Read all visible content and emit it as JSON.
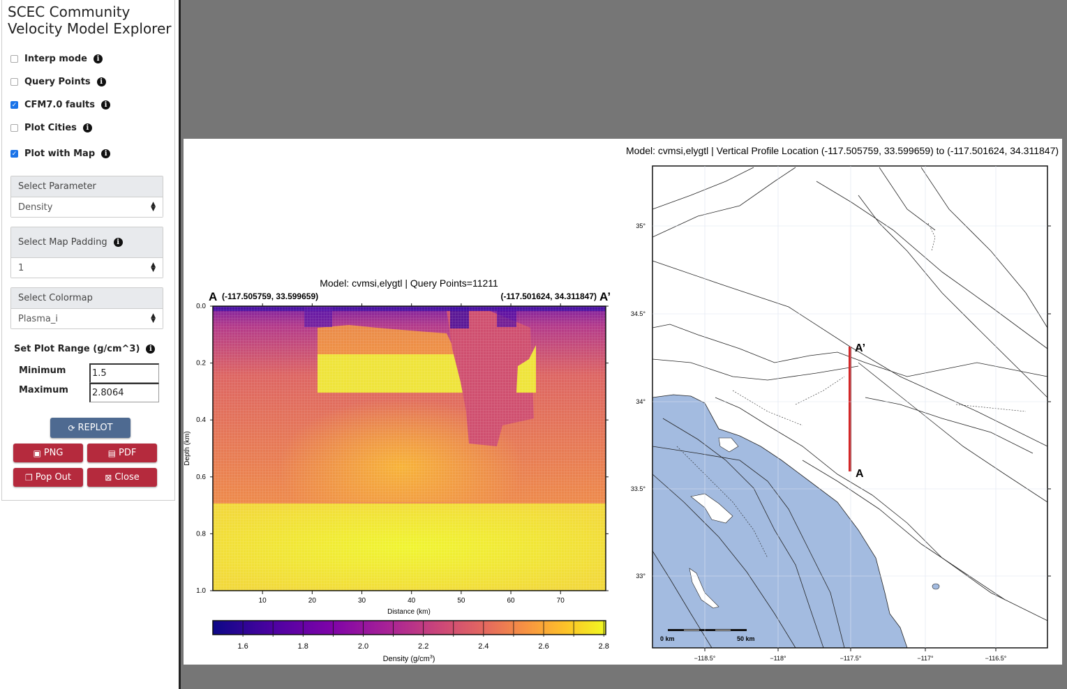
{
  "sidebar": {
    "title_line1": "SCEC Community",
    "title_line2": "Velocity Model Explorer",
    "checkboxes": [
      {
        "label": "Interp mode",
        "checked": false
      },
      {
        "label": "Query Points",
        "checked": false
      },
      {
        "label": "CFM7.0 faults",
        "checked": true
      },
      {
        "label": "Plot Cities",
        "checked": false
      },
      {
        "label": "Plot with Map",
        "checked": true
      }
    ],
    "parameter": {
      "label": "Select Parameter",
      "value": "Density"
    },
    "padding": {
      "label": "Select Map Padding",
      "value": "1"
    },
    "colormap": {
      "label": "Select Colormap",
      "value": "Plasma_i"
    },
    "range": {
      "label": "Set Plot Range (g/cm^3)",
      "min_label": "Minimum",
      "min_value": "1.5",
      "max_label": "Maximum",
      "max_value": "2.8064"
    },
    "buttons": {
      "replot": "REPLOT",
      "png": "PNG",
      "pdf": "PDF",
      "popout": "Pop Out",
      "close": "Close"
    }
  },
  "colors": {
    "accent_blue": "#4e6a91",
    "button_red": "#b52a3d",
    "ocean": "#a3bbe0",
    "profile_line": "#d42020"
  },
  "chart_data": [
    {
      "type": "heatmap",
      "title": "Model: cvmsi,elygtl | Query Points=11211",
      "start_label": "A",
      "start_coord": "(-117.505759, 33.599659)",
      "end_label": "A’",
      "end_coord": "(-117.501624, 34.311847)",
      "xlabel": "Distance (km)",
      "ylabel": "Depth (km)",
      "xlim": [
        0,
        79.1
      ],
      "ylim": [
        1.0,
        0.0
      ],
      "xticks": [
        10,
        20,
        30,
        40,
        50,
        60,
        70
      ],
      "yticks": [
        "0.0",
        "0.2",
        "0.4",
        "0.6",
        "0.8",
        "1.0"
      ],
      "colorbar": {
        "label": "Density (g/cm",
        "label_sup": "3",
        "label_end": ")",
        "range": [
          1.5,
          2.8064
        ],
        "ticks": [
          "1.6",
          "1.8",
          "2.0",
          "2.2",
          "2.4",
          "2.6",
          "2.8"
        ],
        "colormap": "plasma"
      }
    },
    {
      "type": "map",
      "title": "Model: cvmsi,elygtl | Vertical Profile Location (-117.505759, 33.599659) to (-117.501624, 34.311847)",
      "lon_ticks": [
        "−118.5°",
        "−118°",
        "−117.5°",
        "−117°",
        "−116.5°"
      ],
      "lat_ticks": [
        "35°",
        "34.5°",
        "34°",
        "33.5°",
        "33°"
      ],
      "profile": {
        "start": [
          -117.505759,
          33.599659
        ],
        "end": [
          -117.501624,
          34.311847
        ],
        "start_label": "A",
        "end_label": "A’"
      },
      "scale_bar": {
        "start": "0 km",
        "end": "50 km"
      }
    }
  ]
}
